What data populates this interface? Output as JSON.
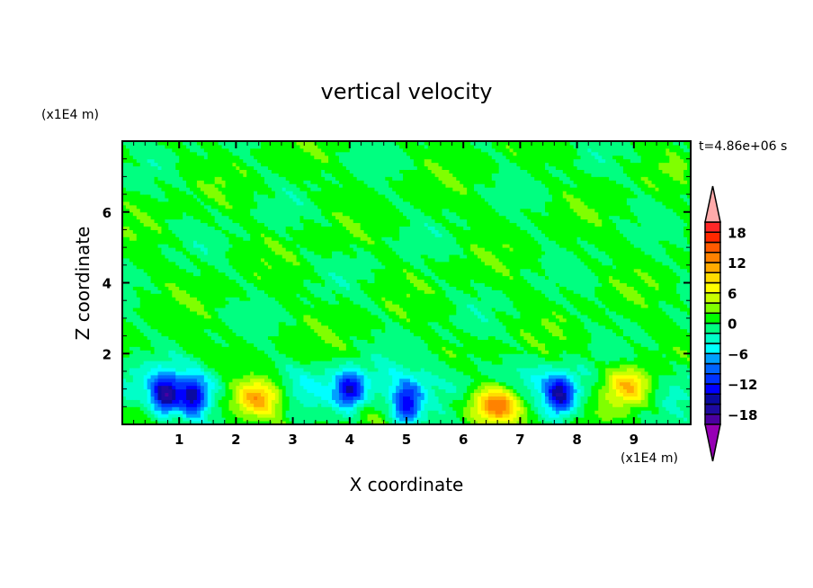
{
  "chart_data": {
    "type": "heatmap",
    "title": "vertical velocity",
    "xlabel": "X coordinate",
    "ylabel": "Z coordinate",
    "x_unit": "(x1E4 m)",
    "y_unit": "(x1E4 m)",
    "time_label": "t=4.86e+06 s",
    "xlim": [
      0,
      10
    ],
    "ylim": [
      0,
      8
    ],
    "xticks": [
      1,
      2,
      3,
      4,
      5,
      6,
      7,
      8,
      9
    ],
    "yticks": [
      2,
      4,
      6
    ],
    "colorbar": {
      "levels": [
        -20,
        -18,
        -16,
        -14,
        -12,
        -10,
        -8,
        -6,
        -4,
        -2,
        0,
        2,
        4,
        6,
        8,
        10,
        12,
        14,
        16,
        18,
        20
      ],
      "tick_labels": [
        "18",
        "12",
        "6",
        "0",
        "-6",
        "-12",
        "-18"
      ],
      "tick_values": [
        18,
        12,
        6,
        0,
        -6,
        -12,
        -18
      ],
      "colors": [
        "#4b00a0",
        "#1e0aa0",
        "#0a0aa0",
        "#0000ff",
        "#0032ff",
        "#0064ff",
        "#00a0ff",
        "#00ffff",
        "#00ffc8",
        "#00ff80",
        "#00ff00",
        "#80ff00",
        "#c8ff00",
        "#ffff00",
        "#ffdc00",
        "#ffaa00",
        "#ff8200",
        "#ff5a00",
        "#ff2800",
        "#ff2828"
      ],
      "under_color": "#9600b4",
      "over_color": "#ffaaaa"
    },
    "features": [
      {
        "x": 0.75,
        "z": 0.8,
        "value": -15
      },
      {
        "x": 1.25,
        "z": 0.75,
        "value": -13
      },
      {
        "x": 2.4,
        "z": 0.8,
        "value": 13
      },
      {
        "x": 4.0,
        "z": 0.95,
        "value": -12
      },
      {
        "x": 5.0,
        "z": 0.55,
        "value": -13
      },
      {
        "x": 6.6,
        "z": 0.6,
        "value": 15
      },
      {
        "x": 7.7,
        "z": 0.8,
        "value": -13
      },
      {
        "x": 8.9,
        "z": 1.1,
        "value": 13
      }
    ]
  }
}
